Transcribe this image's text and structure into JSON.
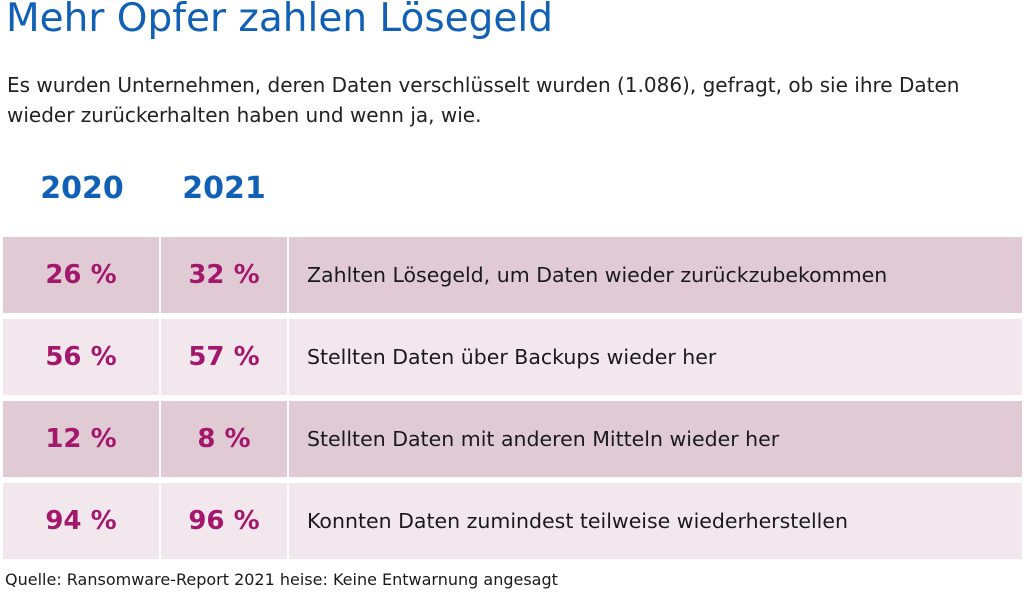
{
  "chart_data": {
    "type": "table",
    "title": "Mehr Opfer zahlen Lösegeld",
    "subtitle": "Es wurden Unternehmen, deren Daten verschlüsselt wurden (1.086), gefragt, ob sie ihre Daten wieder zurückerhalten haben und wenn ja, wie.",
    "columns": [
      "2020",
      "2021"
    ],
    "rows": [
      {
        "label": "Zahlten Lösegeld, um Daten wieder zurückzubekommen",
        "v2020": "26 %",
        "v2021": "32 %"
      },
      {
        "label": "Stellten Daten über Backups wieder her",
        "v2020": "56 %",
        "v2021": "57 %"
      },
      {
        "label": "Stellten Daten mit anderen Mitteln wieder her",
        "v2020": "12 %",
        "v2021": "8 %"
      },
      {
        "label": "Konnten Daten zumindest teilweise wiederherstellen",
        "v2020": "94 %",
        "v2021": "96 %"
      }
    ],
    "values_2020": [
      26,
      56,
      12,
      94
    ],
    "values_2021": [
      32,
      57,
      8,
      96
    ],
    "source": "Quelle: Ransomware-Report 2021 heise: Keine Entwarnung angesagt"
  },
  "colors": {
    "title": "#1060b6",
    "year": "#1060b6",
    "value": "#a3186c",
    "row_dark": "#e0cbd5",
    "row_light": "#f2e7ec"
  }
}
